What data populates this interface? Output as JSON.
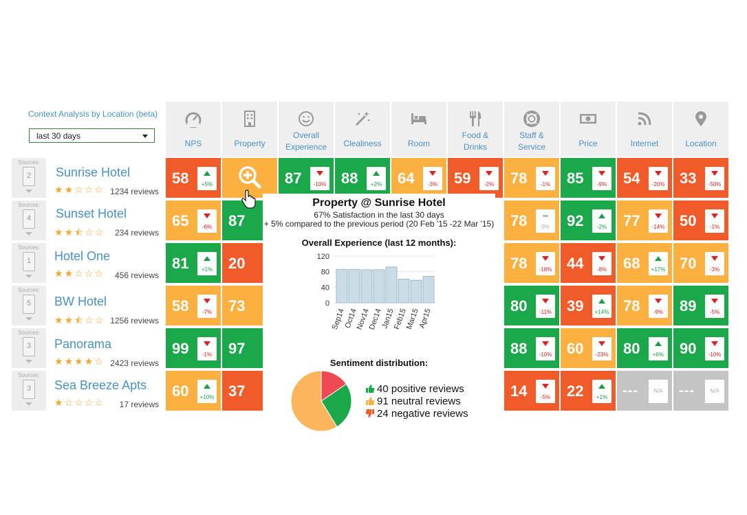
{
  "context": {
    "title": "Context Analysis by Location (beta)",
    "period": "last 30 days"
  },
  "sources_label": "Sources:",
  "columns": [
    {
      "key": "nps",
      "label": "NPS",
      "icon": "gauge-icon"
    },
    {
      "key": "property",
      "label": "Property",
      "icon": "building-icon"
    },
    {
      "key": "overall",
      "label": "Overall Experience",
      "icon": "smiley-icon"
    },
    {
      "key": "cleanliness",
      "label": "Clealiness",
      "icon": "magic-wand-icon"
    },
    {
      "key": "room",
      "label": "Room",
      "icon": "bed-icon"
    },
    {
      "key": "food",
      "label": "Food & Drinks",
      "icon": "fork-knife-icon"
    },
    {
      "key": "staff",
      "label": "Staff & Service",
      "icon": "lifebuoy-icon"
    },
    {
      "key": "price",
      "label": "Price",
      "icon": "banknote-icon"
    },
    {
      "key": "internet",
      "label": "Internet",
      "icon": "rss-icon"
    },
    {
      "key": "location",
      "label": "Location",
      "icon": "map-pin-icon"
    }
  ],
  "hotels": [
    {
      "name": "Sunrise Hotel",
      "sources": "2",
      "stars": 2,
      "reviews": "1234 reviews"
    },
    {
      "name": "Sunset Hotel",
      "sources": "4",
      "stars": 2.5,
      "reviews": "234 reviews"
    },
    {
      "name": "Hotel One",
      "sources": "1",
      "stars": 2,
      "reviews": "456 reviews"
    },
    {
      "name": "BW Hotel",
      "sources": "5",
      "stars": 2.5,
      "reviews": "1256 reviews"
    },
    {
      "name": "Panorama",
      "sources": "3",
      "stars": 4,
      "reviews": "2423 reviews"
    },
    {
      "name": "Sea Breeze Apts",
      "sources": "3",
      "stars": 1,
      "reviews": "17 reviews"
    }
  ],
  "cells": [
    {
      "row": 0,
      "col": 0,
      "score": "58",
      "delta": "+5%",
      "dir": "up",
      "color": "red"
    },
    {
      "row": 0,
      "col": 2,
      "score": "87",
      "delta": "-10%",
      "dir": "down",
      "color": "green"
    },
    {
      "row": 0,
      "col": 3,
      "score": "88",
      "delta": "+2%",
      "dir": "up",
      "color": "green"
    },
    {
      "row": 0,
      "col": 4,
      "score": "64",
      "delta": "-3%",
      "dir": "down",
      "color": "orange"
    },
    {
      "row": 0,
      "col": 5,
      "score": "59",
      "delta": "-2%",
      "dir": "down",
      "color": "red"
    },
    {
      "row": 0,
      "col": 6,
      "score": "78",
      "delta": "-1%",
      "dir": "down",
      "color": "orange"
    },
    {
      "row": 0,
      "col": 7,
      "score": "85",
      "delta": "-9%",
      "dir": "down",
      "color": "green"
    },
    {
      "row": 0,
      "col": 8,
      "score": "54",
      "delta": "-20%",
      "dir": "down",
      "color": "red"
    },
    {
      "row": 0,
      "col": 9,
      "score": "33",
      "delta": "-50%",
      "dir": "down",
      "color": "red"
    },
    {
      "row": 1,
      "col": 0,
      "score": "65",
      "delta": "-6%",
      "dir": "down",
      "color": "orange"
    },
    {
      "row": 1,
      "col": 1,
      "score": "87",
      "delta": "",
      "dir": "none",
      "color": "green"
    },
    {
      "row": 1,
      "col": 6,
      "score": "78",
      "delta": "0%",
      "dir": "flat",
      "color": "orange"
    },
    {
      "row": 1,
      "col": 7,
      "score": "92",
      "delta": "-2%",
      "dir": "up",
      "color": "green"
    },
    {
      "row": 1,
      "col": 8,
      "score": "77",
      "delta": "-14%",
      "dir": "down",
      "color": "orange"
    },
    {
      "row": 1,
      "col": 9,
      "score": "50",
      "delta": "-1%",
      "dir": "down",
      "color": "red"
    },
    {
      "row": 2,
      "col": 0,
      "score": "81",
      "delta": "+1%",
      "dir": "up",
      "color": "green"
    },
    {
      "row": 2,
      "col": 1,
      "score": "20",
      "delta": "",
      "dir": "none",
      "color": "red"
    },
    {
      "row": 2,
      "col": 6,
      "score": "78",
      "delta": "-18%",
      "dir": "down",
      "color": "orange"
    },
    {
      "row": 2,
      "col": 7,
      "score": "44",
      "delta": "-8%",
      "dir": "down",
      "color": "red"
    },
    {
      "row": 2,
      "col": 8,
      "score": "68",
      "delta": "+17%",
      "dir": "up",
      "color": "orange"
    },
    {
      "row": 2,
      "col": 9,
      "score": "70",
      "delta": "-3%",
      "dir": "down",
      "color": "orange"
    },
    {
      "row": 3,
      "col": 0,
      "score": "58",
      "delta": "-7%",
      "dir": "down",
      "color": "orange"
    },
    {
      "row": 3,
      "col": 1,
      "score": "73",
      "delta": "",
      "dir": "none",
      "color": "orange"
    },
    {
      "row": 3,
      "col": 6,
      "score": "80",
      "delta": "-11%",
      "dir": "down",
      "color": "green"
    },
    {
      "row": 3,
      "col": 7,
      "score": "39",
      "delta": "+14%",
      "dir": "up",
      "color": "red"
    },
    {
      "row": 3,
      "col": 8,
      "score": "78",
      "delta": "-9%",
      "dir": "down",
      "color": "orange"
    },
    {
      "row": 3,
      "col": 9,
      "score": "89",
      "delta": "-5%",
      "dir": "down",
      "color": "green"
    },
    {
      "row": 4,
      "col": 0,
      "score": "99",
      "delta": "-1%",
      "dir": "down",
      "color": "green"
    },
    {
      "row": 4,
      "col": 1,
      "score": "97",
      "delta": "",
      "dir": "none",
      "color": "green"
    },
    {
      "row": 4,
      "col": 6,
      "score": "88",
      "delta": "-10%",
      "dir": "down",
      "color": "green"
    },
    {
      "row": 4,
      "col": 7,
      "score": "60",
      "delta": "-23%",
      "dir": "down",
      "color": "orange"
    },
    {
      "row": 4,
      "col": 8,
      "score": "80",
      "delta": "+6%",
      "dir": "up",
      "color": "green"
    },
    {
      "row": 4,
      "col": 9,
      "score": "90",
      "delta": "-10%",
      "dir": "down",
      "color": "green"
    },
    {
      "row": 5,
      "col": 0,
      "score": "60",
      "delta": "+10%",
      "dir": "up",
      "color": "orange"
    },
    {
      "row": 5,
      "col": 1,
      "score": "37",
      "delta": "",
      "dir": "none",
      "color": "red"
    },
    {
      "row": 5,
      "col": 6,
      "score": "14",
      "delta": "-5%",
      "dir": "down",
      "color": "red"
    },
    {
      "row": 5,
      "col": 7,
      "score": "22",
      "delta": "+1%",
      "dir": "up",
      "color": "red"
    },
    {
      "row": 5,
      "col": 8,
      "score": "---",
      "delta": "N/A",
      "dir": "na",
      "color": "gray"
    },
    {
      "row": 5,
      "col": 9,
      "score": "---",
      "delta": "N/A",
      "dir": "na",
      "color": "gray"
    }
  ],
  "tooltip": {
    "title": "Property @ Sunrise Hotel",
    "satisfaction": "67% Satisfaction in the last 30 days",
    "comparison": "+ 5% compared to the previous period (20 Feb '15 -22 Mar '15)",
    "chart_title": "Overall Experience (last 12 months):",
    "sentiment_title": "Sentiment distribution:",
    "legend": {
      "positive": "40 positive reviews",
      "neutral": "91 neutral reviews",
      "negative": "24 negative reviews"
    }
  },
  "chart_data": [
    {
      "type": "bar",
      "categories": [
        "Sep14",
        "Oct14",
        "Nov14",
        "Dec14",
        "Jan15",
        "Feb15",
        "Mar15",
        "Apr15"
      ],
      "values": [
        86,
        86,
        85,
        85,
        92,
        61,
        58,
        68
      ],
      "ylim": [
        0,
        120
      ],
      "yticks": [
        0,
        40,
        80,
        120
      ],
      "grid": true
    },
    {
      "type": "pie",
      "categories": [
        "positive",
        "neutral",
        "negative"
      ],
      "values": [
        40,
        91,
        24
      ],
      "colors": [
        "#1aa84b",
        "#fcb55a",
        "#ef4a54"
      ]
    }
  ],
  "colors": {
    "green": "#1aa84b",
    "orange": "#fcb040",
    "red": "#f15a29",
    "gray": "#c4c4c4",
    "link": "#4a90c2"
  }
}
